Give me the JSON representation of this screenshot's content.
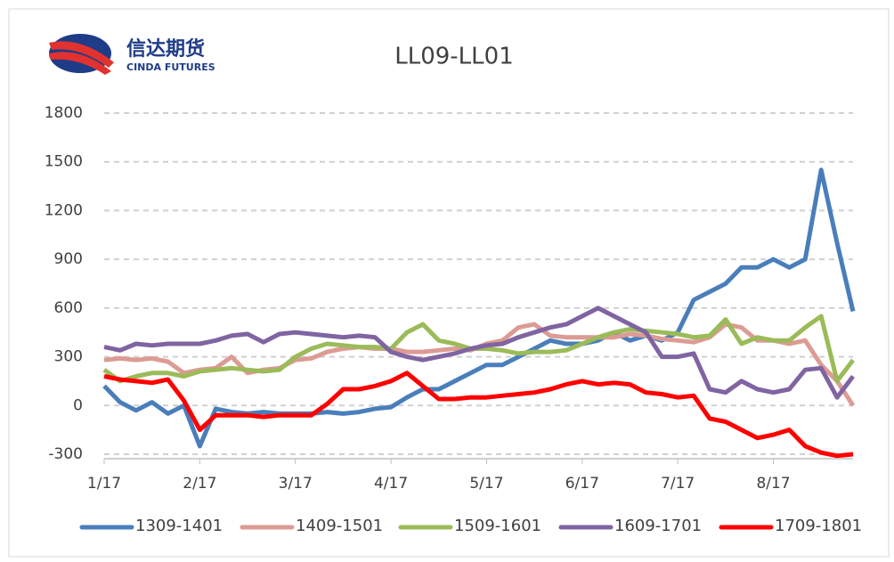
{
  "logo": {
    "name": "信达期货",
    "subtitle": "CINDA FUTURES"
  },
  "chart_data": {
    "type": "line",
    "title": "LL09-LL01",
    "categories": [
      "1/17",
      null,
      null,
      null,
      null,
      null,
      "2/17",
      null,
      null,
      null,
      null,
      null,
      "3/17",
      null,
      null,
      null,
      null,
      null,
      "4/17",
      null,
      null,
      null,
      null,
      null,
      "5/17",
      null,
      null,
      null,
      null,
      null,
      "6/17",
      null,
      null,
      null,
      null,
      null,
      "7/17",
      null,
      null,
      null,
      null,
      null,
      "8/17",
      null,
      null,
      null,
      null,
      null
    ],
    "ylim": [
      -300,
      1800
    ],
    "yticks": [
      -300,
      0,
      300,
      600,
      900,
      1200,
      1500,
      1800
    ],
    "grid": true,
    "legend": "bottom",
    "series": [
      {
        "name": "1309-1401",
        "color": "#4a7ebb",
        "values": [
          120,
          20,
          -30,
          20,
          -50,
          0,
          -250,
          -20,
          -40,
          -50,
          -40,
          -50,
          -50,
          -50,
          -40,
          -50,
          -40,
          -20,
          -10,
          50,
          100,
          100,
          150,
          200,
          250,
          250,
          300,
          350,
          400,
          380,
          380,
          400,
          450,
          400,
          430,
          400,
          450,
          650,
          700,
          750,
          850,
          850,
          900,
          850,
          900,
          1450,
          1000,
          580
        ]
      },
      {
        "name": "1409-1501",
        "color": "#dc9b93",
        "values": [
          280,
          290,
          280,
          290,
          270,
          200,
          220,
          230,
          300,
          200,
          220,
          230,
          280,
          290,
          330,
          350,
          360,
          350,
          350,
          330,
          330,
          340,
          350,
          340,
          380,
          400,
          480,
          500,
          430,
          420,
          420,
          420,
          420,
          440,
          430,
          410,
          400,
          390,
          420,
          500,
          480,
          400,
          400,
          380,
          400,
          250,
          150,
          0
        ]
      },
      {
        "name": "1509-1601",
        "color": "#9bbb59",
        "values": [
          220,
          150,
          180,
          200,
          200,
          180,
          210,
          220,
          230,
          220,
          210,
          220,
          300,
          350,
          380,
          370,
          360,
          360,
          350,
          450,
          500,
          400,
          380,
          350,
          350,
          340,
          320,
          330,
          330,
          340,
          380,
          420,
          450,
          470,
          460,
          450,
          440,
          420,
          430,
          530,
          380,
          420,
          400,
          400,
          480,
          550,
          150,
          280
        ]
      },
      {
        "name": "1609-1701",
        "color": "#8064a2",
        "values": [
          360,
          340,
          380,
          370,
          380,
          380,
          380,
          400,
          430,
          440,
          390,
          440,
          450,
          440,
          430,
          420,
          430,
          420,
          330,
          300,
          280,
          300,
          320,
          350,
          370,
          380,
          420,
          450,
          480,
          500,
          550,
          600,
          550,
          500,
          450,
          300,
          300,
          320,
          100,
          80,
          150,
          100,
          80,
          100,
          220,
          230,
          50,
          180
        ]
      },
      {
        "name": "1709-1801",
        "color": "#ff0000",
        "values": [
          180,
          160,
          150,
          140,
          160,
          30,
          -150,
          -60,
          -60,
          -60,
          -70,
          -60,
          -60,
          -60,
          10,
          100,
          100,
          120,
          150,
          200,
          120,
          40,
          40,
          50,
          50,
          60,
          70,
          80,
          100,
          130,
          150,
          130,
          140,
          130,
          80,
          70,
          50,
          60,
          -80,
          -100,
          -150,
          -200,
          -180,
          -150,
          -250,
          -290,
          -310,
          -300
        ]
      }
    ]
  }
}
